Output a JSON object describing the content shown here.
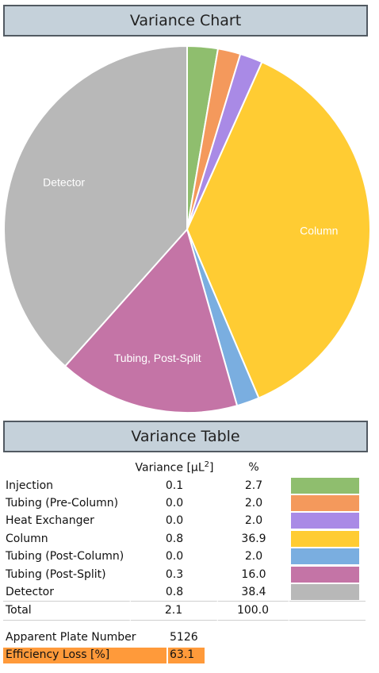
{
  "chart_header": "Variance Chart",
  "table_header": "Variance Table",
  "chart_data": {
    "type": "pie",
    "title": "Variance Chart",
    "slices": [
      {
        "label": "Injection",
        "value": 2.7,
        "color": "#8fbe6e",
        "show_label": false
      },
      {
        "label": "Tubing (Pre-Column)",
        "value": 2.0,
        "color": "#f4995c",
        "show_label": false
      },
      {
        "label": "Heat Exchanger",
        "value": 2.0,
        "color": "#a98ae6",
        "show_label": false
      },
      {
        "label": "Column",
        "value": 36.9,
        "color": "#ffcc33",
        "show_label": true
      },
      {
        "label": "Tubing (Post-Column)",
        "value": 2.0,
        "color": "#7aaee0",
        "show_label": false
      },
      {
        "label": "Tubing, Post-Split",
        "value": 16.0,
        "color": "#c474a6",
        "show_label": true
      },
      {
        "label": "Detector",
        "value": 38.4,
        "color": "#b8b8b8",
        "show_label": true
      }
    ]
  },
  "table": {
    "col_variance": "Variance [µL",
    "col_variance_sup": "2",
    "col_variance_end": "]",
    "col_pct": "%",
    "rows": [
      {
        "name": "Injection",
        "variance": "0.1",
        "pct": "2.7",
        "color": "#8fbe6e"
      },
      {
        "name": "Tubing (Pre-Column)",
        "variance": "0.0",
        "pct": "2.0",
        "color": "#f4995c"
      },
      {
        "name": "Heat Exchanger",
        "variance": "0.0",
        "pct": "2.0",
        "color": "#a98ae6"
      },
      {
        "name": "Column",
        "variance": "0.8",
        "pct": "36.9",
        "color": "#ffcc33"
      },
      {
        "name": "Tubing (Post-Column)",
        "variance": "0.0",
        "pct": "2.0",
        "color": "#7aaee0"
      },
      {
        "name": "Tubing (Post-Split)",
        "variance": "0.3",
        "pct": "16.0",
        "color": "#c474a6"
      },
      {
        "name": "Detector",
        "variance": "0.8",
        "pct": "38.4",
        "color": "#b8b8b8"
      }
    ],
    "total": {
      "name": "Total",
      "variance": "2.1",
      "pct": "100.0"
    }
  },
  "summary": {
    "plate_label": "Apparent Plate Number",
    "plate_value": "5126",
    "loss_label": "Efficiency Loss [%]",
    "loss_value": "63.1"
  }
}
